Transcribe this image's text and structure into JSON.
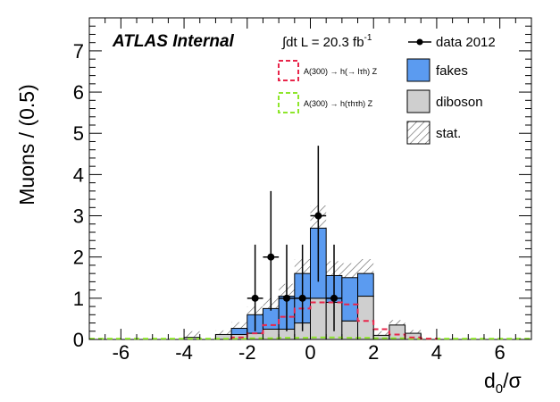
{
  "chart_data": {
    "type": "bar",
    "xlabel": "d",
    "xlabel_sub": "0",
    "xlabel_suffix": "/σ",
    "ylabel": "Muons / (0.5)",
    "xlim": [
      -7,
      7
    ],
    "ylim": [
      0,
      7.8
    ],
    "bin_width": 0.5,
    "x_ticks": [
      -6,
      -4,
      -2,
      0,
      2,
      4,
      6
    ],
    "y_ticks": [
      0,
      1,
      2,
      3,
      4,
      5,
      6,
      7
    ],
    "stack_bins": [
      {
        "x0": -4.0,
        "diboson": 0.05,
        "fakes": 0.0,
        "stat": 0.15
      },
      {
        "x0": -3.0,
        "diboson": 0.12,
        "fakes": 0.0,
        "stat": 0.1
      },
      {
        "x0": -2.5,
        "diboson": 0.12,
        "fakes": 0.15,
        "stat": 0.15
      },
      {
        "x0": -2.0,
        "diboson": 0.15,
        "fakes": 0.45,
        "stat": 0.2
      },
      {
        "x0": -1.5,
        "diboson": 0.25,
        "fakes": 0.5,
        "stat": 0.25
      },
      {
        "x0": -1.0,
        "diboson": 0.25,
        "fakes": 0.8,
        "stat": 0.3
      },
      {
        "x0": -0.5,
        "diboson": 0.4,
        "fakes": 1.2,
        "stat": 0.35
      },
      {
        "x0": 0.0,
        "diboson": 1.0,
        "fakes": 1.7,
        "stat": 0.55
      },
      {
        "x0": 0.5,
        "diboson": 0.9,
        "fakes": 0.65,
        "stat": 0.35
      },
      {
        "x0": 1.0,
        "diboson": 0.45,
        "fakes": 1.05,
        "stat": 0.35
      },
      {
        "x0": 1.5,
        "diboson": 1.05,
        "fakes": 0.55,
        "stat": 0.35
      },
      {
        "x0": 2.0,
        "diboson": 0.1,
        "fakes": 0.0,
        "stat": 0.1
      },
      {
        "x0": 2.5,
        "diboson": 0.35,
        "fakes": 0.0,
        "stat": 0.12
      },
      {
        "x0": 3.0,
        "diboson": 0.15,
        "fakes": 0.0,
        "stat": 0.08
      }
    ],
    "data_points": [
      {
        "x": -1.75,
        "y": 1,
        "err_up": 1.3,
        "err_down": 0.8
      },
      {
        "x": -1.25,
        "y": 2,
        "err_up": 1.6,
        "err_down": 1.3
      },
      {
        "x": -0.75,
        "y": 1,
        "err_up": 1.3,
        "err_down": 0.8
      },
      {
        "x": -0.25,
        "y": 1,
        "err_up": 1.3,
        "err_down": 0.8
      },
      {
        "x": 0.25,
        "y": 3,
        "err_up": 1.7,
        "err_down": 1.6
      },
      {
        "x": 0.75,
        "y": 1,
        "err_up": 1.3,
        "err_down": 0.8
      }
    ],
    "signal_lhZ": [
      {
        "x0": -2.5,
        "y": 0.05
      },
      {
        "x0": -2.0,
        "y": 0.15
      },
      {
        "x0": -1.5,
        "y": 0.35
      },
      {
        "x0": -1.0,
        "y": 0.55
      },
      {
        "x0": -0.5,
        "y": 0.75
      },
      {
        "x0": 0.0,
        "y": 0.9
      },
      {
        "x0": 0.5,
        "y": 0.9
      },
      {
        "x0": 1.0,
        "y": 0.85
      },
      {
        "x0": 1.5,
        "y": 0.45
      },
      {
        "x0": 2.0,
        "y": 0.25
      },
      {
        "x0": 2.5,
        "y": 0.12
      },
      {
        "x0": 3.0,
        "y": 0.05
      },
      {
        "x0": 3.5,
        "y": 0.02
      }
    ],
    "signal_tautauZ": [
      {
        "x0": -7.0,
        "y": 0.02
      },
      {
        "x0": -2.0,
        "y": 0.03
      },
      {
        "x0": -1.0,
        "y": 0.04
      },
      {
        "x0": 0.0,
        "y": 0.05
      },
      {
        "x0": 1.0,
        "y": 0.04
      },
      {
        "x0": 2.0,
        "y": 0.03
      },
      {
        "x0": 3.0,
        "y": 0.02
      }
    ],
    "colors": {
      "fakes": "#5b9bf0",
      "diboson": "#cfcfcf",
      "signal_lhZ": "#e8254a",
      "signal_tautauZ": "#8ee62b",
      "data": "#000000",
      "hatch": "#555555"
    },
    "labels": {
      "atlas": "ATLAS Internal",
      "lumi": "∫dt L = 20.3 fb",
      "lumi_sup": "-1",
      "signal_lhZ": "A(300) → h(→ lτh) Z",
      "signal_tautauZ": "A(300) → h(τhτh) Z",
      "data": "data 2012",
      "fakes": "fakes",
      "diboson": "diboson",
      "stat": "stat."
    }
  }
}
